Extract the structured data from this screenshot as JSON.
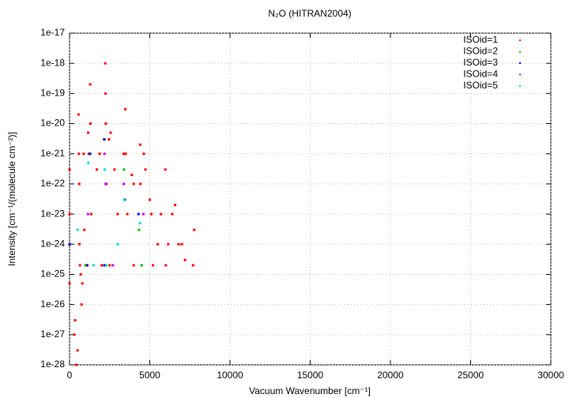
{
  "chart_data": {
    "type": "scatter",
    "title": "N₂O (HITRAN2004)",
    "x_label": "Vacuum Wavenumber [cm⁻¹]",
    "y_label": "Intensity [cm⁻¹/(molecule cm⁻²)]",
    "xlim": [
      0,
      30000
    ],
    "xticks": [
      0,
      5000,
      10000,
      15000,
      20000,
      25000,
      30000
    ],
    "ylim": [
      1e-28,
      1e-17
    ],
    "log_y": true,
    "grid": true,
    "legend": "upper-right",
    "yticks": [
      {
        "value": 1e-28,
        "label": "1e-28"
      },
      {
        "value": 1e-27,
        "label": "1e-27"
      },
      {
        "value": 1e-26,
        "label": "1e-26"
      },
      {
        "value": 1e-25,
        "label": "1e-25"
      },
      {
        "value": 1e-24,
        "label": "1e-24"
      },
      {
        "value": 1e-23,
        "label": "1e-23"
      },
      {
        "value": 1e-22,
        "label": "1e-22"
      },
      {
        "value": 1e-21,
        "label": "1e-21"
      },
      {
        "value": 1e-20,
        "label": "1e-20"
      },
      {
        "value": 1e-19,
        "label": "1e-19"
      },
      {
        "value": 1e-18,
        "label": "1e-18"
      },
      {
        "value": 1e-17,
        "label": "1e-17"
      }
    ],
    "series": [
      {
        "name": "ISOid=1",
        "color": "#ff0000",
        "x": [
          0,
          0,
          0,
          0,
          300,
          350,
          420,
          500,
          560,
          580,
          600,
          620,
          650,
          700,
          750,
          800,
          880,
          920,
          1000,
          1160,
          1200,
          1285,
          1300,
          1350,
          1500,
          1700,
          1880,
          2000,
          2224,
          2240,
          2260,
          2300,
          2460,
          2560,
          2800,
          3000,
          3370,
          3480,
          3500,
          3600,
          3880,
          4000,
          4400,
          4420,
          4630,
          4730,
          5000,
          5100,
          5500,
          5700,
          5970,
          6150,
          6400,
          6580,
          6800,
          7000,
          7200,
          7770,
          7700,
          2500,
          4000,
          5200,
          6000
        ],
        "values": [
          3e-22,
          1e-23,
          1e-24,
          5e-26,
          1e-27,
          3e-27,
          1e-28,
          3e-28,
          2e-20,
          1e-21,
          1e-22,
          1e-24,
          2e-25,
          1e-25,
          1e-26,
          5e-26,
          1e-21,
          3e-24,
          2e-25,
          5e-21,
          1e-21,
          2e-19,
          1e-20,
          1e-23,
          2e-25,
          3e-22,
          1e-21,
          2e-25,
          1e-18,
          1e-19,
          1e-20,
          1e-22,
          3e-21,
          5e-21,
          3e-22,
          1e-23,
          1e-21,
          3e-20,
          1e-21,
          1e-23,
          2e-22,
          1e-22,
          2e-21,
          1e-22,
          1e-21,
          3e-22,
          3e-23,
          1e-23,
          1e-24,
          1e-23,
          3e-22,
          1e-24,
          1e-23,
          2e-23,
          1e-24,
          1e-24,
          3e-25,
          3e-24,
          2e-25,
          2e-25,
          2e-25,
          2e-25,
          2e-25
        ]
      },
      {
        "name": "ISOid=2",
        "color": "#00c000",
        "x": [
          1000,
          1260,
          2180,
          2200,
          3400,
          4330,
          4500
        ],
        "values": [
          2e-25,
          1e-21,
          3e-21,
          2e-25,
          3e-22,
          3e-24,
          2e-25
        ]
      },
      {
        "name": "ISOid=3",
        "color": "#0000c0",
        "x": [
          0,
          1100,
          1280,
          2160,
          2170,
          3450,
          4300
        ],
        "values": [
          1e-24,
          2e-25,
          1e-21,
          3e-21,
          2e-25,
          3e-23,
          1e-23
        ]
      },
      {
        "name": "ISOid=4",
        "color": "#c000ff",
        "x": [
          1150,
          2180,
          2250,
          2700,
          3380,
          4600
        ],
        "values": [
          1e-23,
          1e-21,
          1e-22,
          2e-25,
          1e-22,
          1e-23
        ]
      },
      {
        "name": "ISOid=5",
        "color": "#00dddd",
        "x": [
          500,
          1170,
          1500,
          2190,
          2300,
          3000,
          3400,
          4380
        ],
        "values": [
          3e-24,
          5e-22,
          2e-25,
          3e-22,
          2e-25,
          1e-24,
          3e-23,
          5e-24
        ]
      }
    ]
  }
}
